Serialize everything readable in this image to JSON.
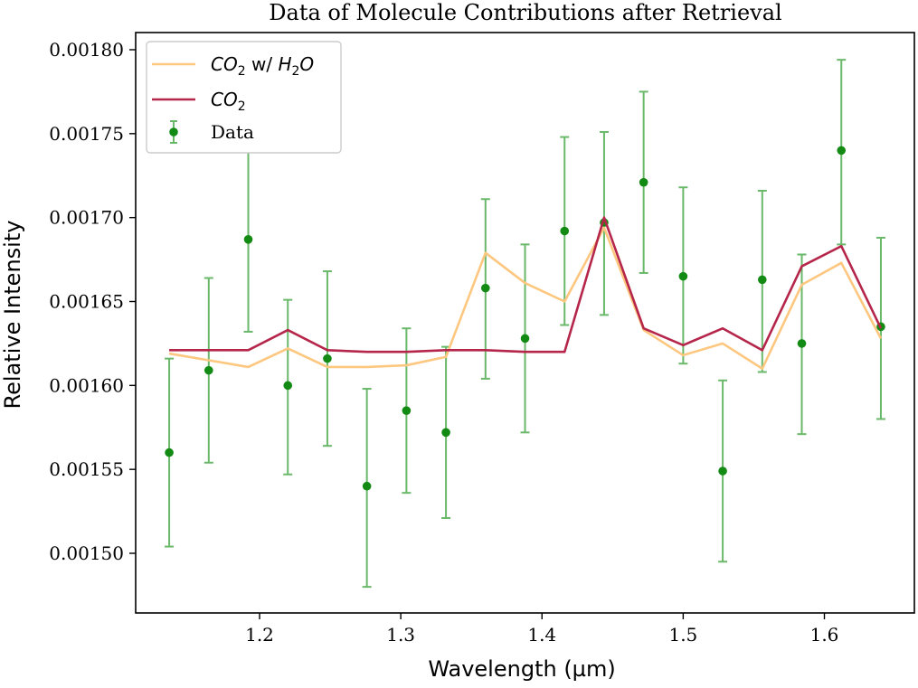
{
  "chart_data": {
    "type": "line",
    "title": "Data of Molecule Contributions after Retrieval",
    "xlabel": "Wavelength (µm)",
    "ylabel": "Relative Intensity",
    "xlim": [
      1.12,
      1.66
    ],
    "ylim": [
      0.00147,
      0.00182
    ],
    "xticks": [
      1.2,
      1.3,
      1.4,
      1.5,
      1.6
    ],
    "xtick_labels": [
      "1.2",
      "1.3",
      "1.4",
      "1.5",
      "1.6"
    ],
    "yticks": [
      0.0015,
      0.00155,
      0.0016,
      0.00165,
      0.0017,
      0.00175,
      0.0018
    ],
    "ytick_labels": [
      "0.00150",
      "0.00155",
      "0.00160",
      "0.00165",
      "0.00170",
      "0.00175",
      "0.00180"
    ],
    "legend_position": "top-left",
    "x": [
      1.136,
      1.164,
      1.192,
      1.22,
      1.248,
      1.276,
      1.304,
      1.332,
      1.36,
      1.388,
      1.416,
      1.444,
      1.472,
      1.5,
      1.528,
      1.556,
      1.584,
      1.612,
      1.64
    ],
    "series": [
      {
        "name": "CO2 w/ H2O",
        "label_main": "CO",
        "label_sub": "2",
        "label_mid": " w/ ",
        "label_main2": "H",
        "label_sub2": "2",
        "label_main3": "O",
        "kind": "line",
        "color": "#fdc77f",
        "values": [
          0.001619,
          0.001615,
          0.001611,
          0.001622,
          0.001611,
          0.001611,
          0.001612,
          0.001617,
          0.001679,
          0.001661,
          0.00165,
          0.001694,
          0.001633,
          0.001618,
          0.001625,
          0.00161,
          0.00166,
          0.001673,
          0.001628
        ]
      },
      {
        "name": "CO2",
        "label_main": "CO",
        "label_sub": "2",
        "kind": "line",
        "color": "#b5264a",
        "values": [
          0.001621,
          0.001621,
          0.001621,
          0.001633,
          0.001621,
          0.00162,
          0.00162,
          0.001621,
          0.001621,
          0.00162,
          0.00162,
          0.0017,
          0.001634,
          0.001624,
          0.001634,
          0.001621,
          0.001671,
          0.001683,
          0.001634
        ]
      },
      {
        "name": "Data",
        "label": "Data",
        "kind": "errorbar",
        "color": "#138a13",
        "errbar_color": "#6ab86a",
        "values": [
          0.00156,
          0.001609,
          0.001687,
          0.0016,
          0.001616,
          0.00154,
          0.001585,
          0.001572,
          0.001658,
          0.001628,
          0.001692,
          0.001697,
          0.001721,
          0.001665,
          0.001549,
          0.001663,
          0.001625,
          0.00174,
          0.001635
        ],
        "err_low": [
          5.6e-05,
          5.5e-05,
          5.5e-05,
          5.3e-05,
          5.2e-05,
          6e-05,
          4.9e-05,
          5.1e-05,
          5.4e-05,
          5.6e-05,
          5.6e-05,
          5.5e-05,
          5.4e-05,
          5.2e-05,
          5.4e-05,
          5.5e-05,
          5.4e-05,
          5.6e-05,
          5.5e-05
        ],
        "err_high": [
          5.6e-05,
          5.5e-05,
          5.3e-05,
          5.1e-05,
          5.2e-05,
          5.8e-05,
          4.9e-05,
          5.1e-05,
          5.3e-05,
          5.6e-05,
          5.6e-05,
          5.4e-05,
          5.4e-05,
          5.3e-05,
          5.4e-05,
          5.3e-05,
          5.3e-05,
          5.4e-05,
          5.3e-05
        ]
      }
    ]
  }
}
